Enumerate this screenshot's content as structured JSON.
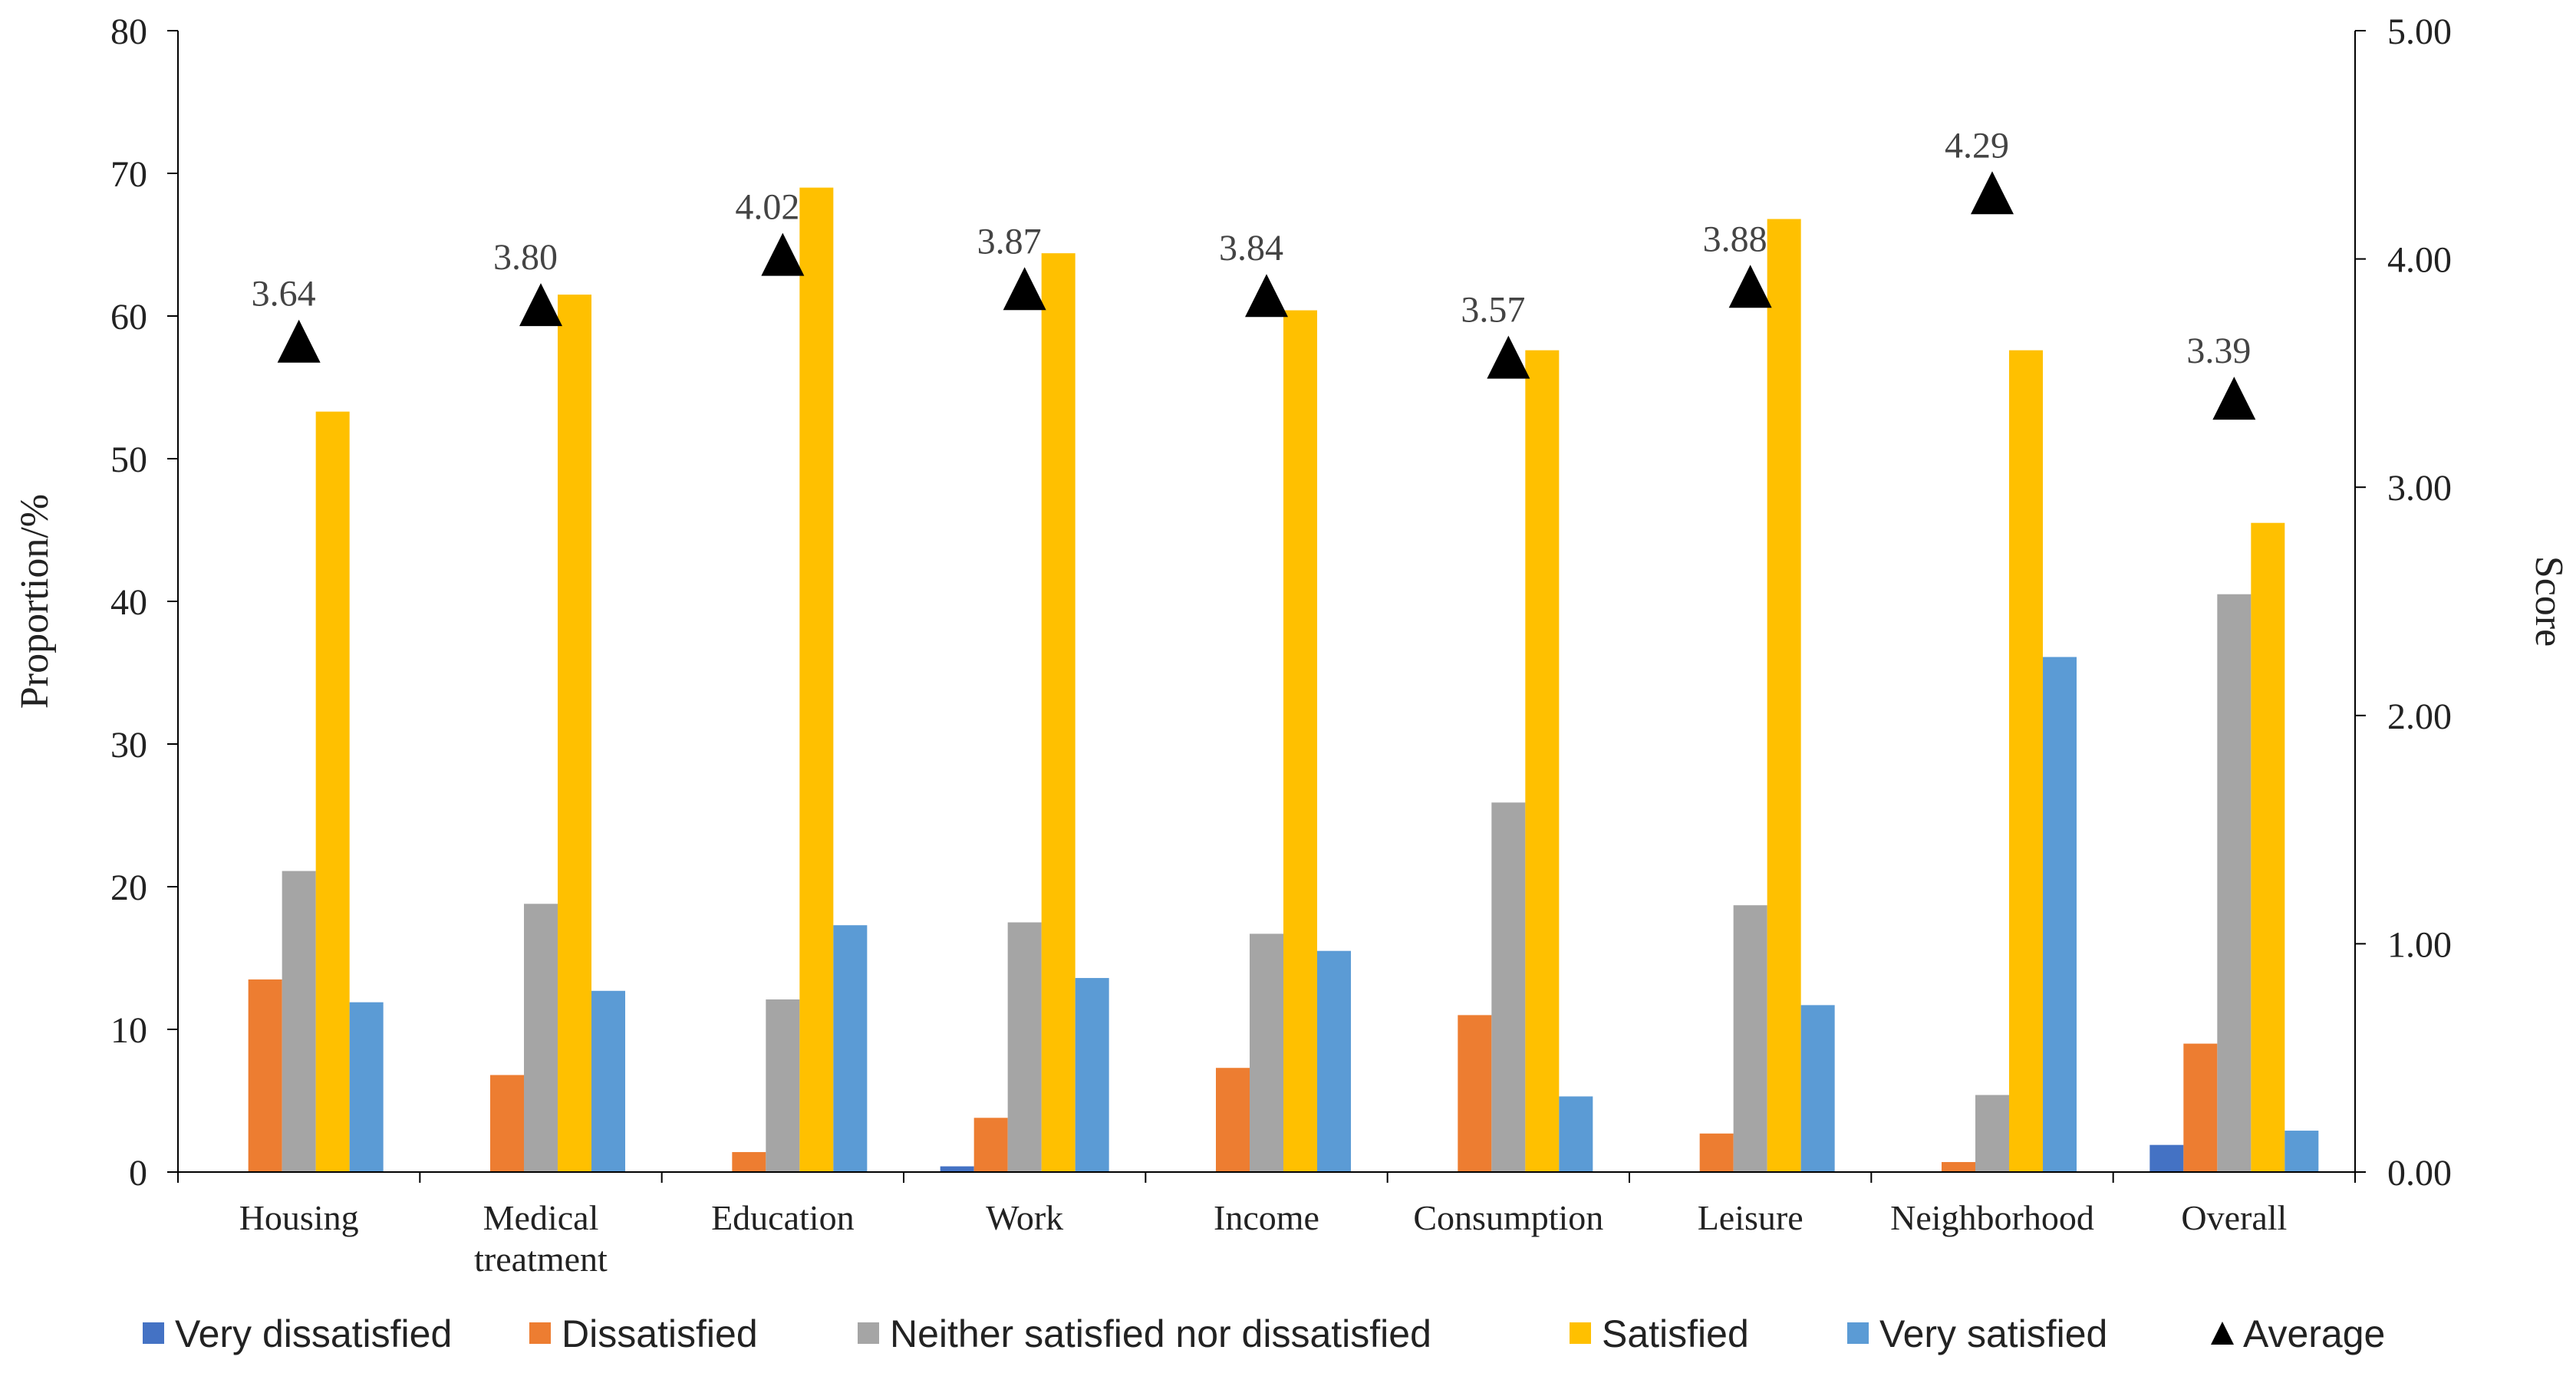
{
  "chart_data": {
    "type": "bar",
    "categories": [
      [
        "Housing"
      ],
      [
        "Medical",
        "treatment"
      ],
      [
        "Education"
      ],
      [
        "Work"
      ],
      [
        "Income"
      ],
      [
        "Consumption"
      ],
      [
        "Leisure"
      ],
      [
        "Neighborhood"
      ],
      [
        "Overall"
      ]
    ],
    "series": [
      {
        "name": "Very dissatisfied",
        "color": "#4472C4",
        "values": [
          0,
          0,
          0,
          0.4,
          0,
          0,
          0,
          0,
          1.9
        ]
      },
      {
        "name": "Dissatisfied",
        "color": "#ED7D31",
        "values": [
          13.5,
          6.8,
          1.4,
          3.8,
          7.3,
          11.0,
          2.7,
          0.7,
          9.0
        ]
      },
      {
        "name": "Neither satisfied nor dissatisfied",
        "color": "#A5A5A5",
        "values": [
          21.1,
          18.8,
          12.1,
          17.5,
          16.7,
          25.9,
          18.7,
          5.4,
          40.5
        ]
      },
      {
        "name": "Satisfied",
        "color": "#FFC000",
        "values": [
          53.3,
          61.5,
          69.0,
          64.4,
          60.4,
          57.6,
          66.8,
          57.6,
          45.5
        ]
      },
      {
        "name": "Very satisfied",
        "color": "#5B9BD5",
        "values": [
          11.9,
          12.7,
          17.3,
          13.6,
          15.5,
          5.3,
          11.7,
          36.1,
          2.9
        ]
      }
    ],
    "average": {
      "name": "Average",
      "color": "#000000",
      "values": [
        3.64,
        3.8,
        4.02,
        3.87,
        3.84,
        3.57,
        3.88,
        4.29,
        3.39
      ],
      "labels": [
        "3.64",
        "3.80",
        "4.02",
        "3.87",
        "3.84",
        "3.57",
        "3.88",
        "4.29",
        "3.39"
      ]
    },
    "ylabel": "Proportion/%",
    "y2label": "Score",
    "ylim": [
      0,
      80
    ],
    "y2lim": [
      0,
      5
    ],
    "yticks": [
      "0",
      "10",
      "20",
      "30",
      "40",
      "50",
      "60",
      "70",
      "80"
    ],
    "y2ticks": [
      "0.00",
      "1.00",
      "2.00",
      "3.00",
      "4.00",
      "5.00"
    ],
    "grid": false,
    "legend_position": "bottom"
  }
}
